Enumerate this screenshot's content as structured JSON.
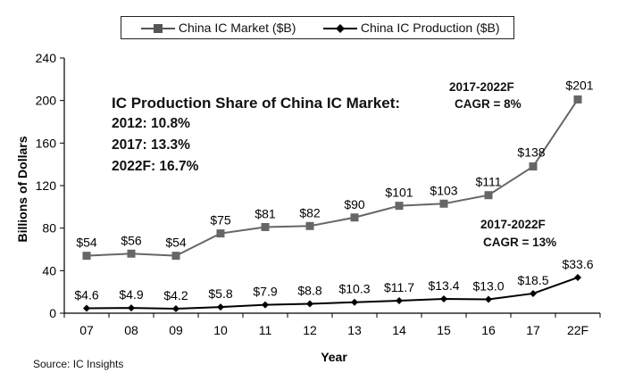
{
  "chart_data": {
    "type": "line",
    "categories": [
      "07",
      "08",
      "09",
      "10",
      "11",
      "12",
      "13",
      "14",
      "15",
      "16",
      "17",
      "22F"
    ],
    "series": [
      {
        "name": "China IC Market ($B)",
        "values": [
          54,
          56,
          54,
          75,
          81,
          82,
          90,
          101,
          103,
          111,
          138,
          201
        ],
        "labels": [
          "$54",
          "$56",
          "$54",
          "$75",
          "$81",
          "$82",
          "$90",
          "$101",
          "$103",
          "$111",
          "$138",
          "$201"
        ],
        "color": "#666666",
        "marker": "square"
      },
      {
        "name": "China IC Production ($B)",
        "values": [
          4.6,
          4.9,
          4.2,
          5.8,
          7.9,
          8.8,
          10.3,
          11.7,
          13.4,
          13.0,
          18.5,
          33.6
        ],
        "labels": [
          "$4.6",
          "$4.9",
          "$4.2",
          "$5.8",
          "$7.9",
          "$8.8",
          "$10.3",
          "$11.7",
          "$13.4",
          "$13.0",
          "$18.5",
          "$33.6"
        ],
        "color": "#000000",
        "marker": "diamond"
      }
    ],
    "xlabel": "Year",
    "ylabel": "Billions of Dollars",
    "ylim": [
      0,
      240
    ],
    "yticks": [
      0,
      40,
      80,
      120,
      160,
      200,
      240
    ],
    "legend_position": "top"
  },
  "annotations": {
    "share_title": "IC Production Share of China IC Market:",
    "share_lines": [
      "2012: 10.8%",
      "2017: 13.3%",
      "2022F: 16.7%"
    ],
    "market_cagr": [
      "2017-2022F",
      "CAGR = 8%"
    ],
    "production_cagr": [
      "2017-2022F",
      "CAGR = 13%"
    ]
  },
  "source": "Source: IC Insights"
}
